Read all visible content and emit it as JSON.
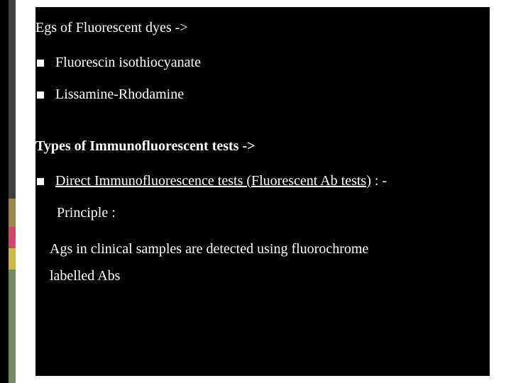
{
  "slide": {
    "background_color": "#000000",
    "content_background": "#ffffff",
    "text_color": "#ffffff",
    "accent_colors": [
      "#404040",
      "#404040",
      "#9a8a4a",
      "#c94a6a",
      "#c9b84a",
      "#7a8a5a",
      "#7a8a5a"
    ],
    "accent_heights": [
      50,
      230,
      40,
      30,
      30,
      30,
      130
    ],
    "heading1": "Egs of Fluorescent dyes ->",
    "bullets1": [
      "Fluorescin isothiocyanate",
      "Lissamine-Rhodamine"
    ],
    "heading2": "Types of Immunofluorescent tests ->",
    "bullet3_underlined": "Direct Immunofluorescence tests (Fluorescent Ab tests)",
    "bullet3_suffix": " : -",
    "subline1": "Principle :",
    "subline2_a": " Ags in clinical samples are detected using fluorochrome",
    "subline2_b": "labelled Abs",
    "font_family": "Georgia serif",
    "body_fontsize": 20,
    "bullet_marker_color": "#ffffff",
    "bullet_marker_size": 10
  }
}
